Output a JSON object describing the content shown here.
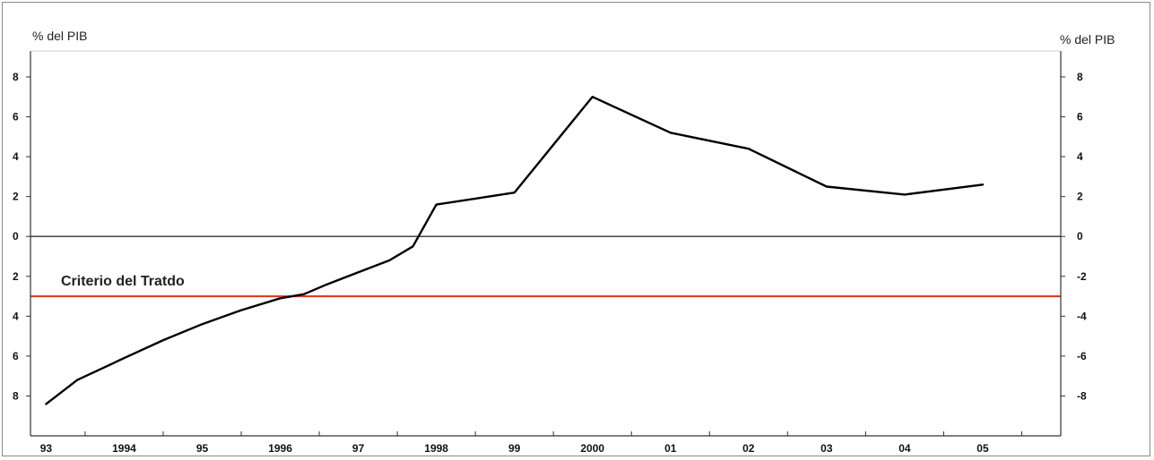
{
  "chart_data": {
    "type": "line",
    "y_unit_left": "% del PIB",
    "y_unit_right": "% del PIB",
    "ylim": [
      -10,
      9.3
    ],
    "yticks": [
      8,
      6,
      4,
      2,
      0,
      -2,
      -4,
      -6,
      -8
    ],
    "ytick_labels_left": [
      "8",
      "6",
      "4",
      "2",
      "0",
      "2",
      "4",
      "6",
      "8"
    ],
    "ytick_labels_right": [
      "8",
      "6",
      "4",
      "2",
      "0",
      "-2",
      "-4",
      "-6",
      "-8"
    ],
    "x_labels": [
      "93",
      "1994",
      "95",
      "1996",
      "97",
      "1998",
      "99",
      "2000",
      "01",
      "02",
      "03",
      "04",
      "05"
    ],
    "xlim": [
      1992.8,
      2006.0
    ],
    "grid": false,
    "series": [
      {
        "color": "#000000",
        "x": [
          1993.0,
          1993.4,
          1994.0,
          1994.5,
          1995.0,
          1995.5,
          1996.0,
          1996.3,
          1996.6,
          1997.0,
          1997.4,
          1997.7,
          1998.0,
          1998.5,
          1999.0,
          2000.0,
          2001.0,
          2002.0,
          2003.0,
          2004.0,
          2005.0
        ],
        "y": [
          -8.4,
          -7.2,
          -6.1,
          -5.2,
          -4.4,
          -3.7,
          -3.1,
          -2.9,
          -2.4,
          -1.8,
          -1.2,
          -0.5,
          1.6,
          1.9,
          2.2,
          7.0,
          5.2,
          4.4,
          2.5,
          2.1,
          2.6
        ]
      }
    ],
    "reference_lines": [
      {
        "y": 0,
        "color": "#333333"
      },
      {
        "y": -3,
        "color": "#e03a2a",
        "label": "Criterio del Tratdo"
      }
    ]
  }
}
